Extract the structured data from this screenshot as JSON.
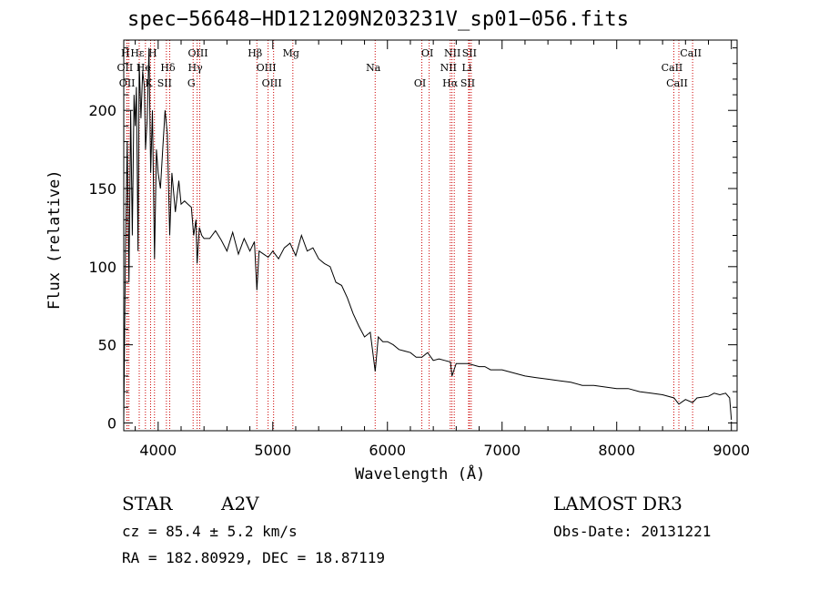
{
  "chart_data": {
    "type": "line",
    "title": "spec−56648−HD121209N203231V_sp01−056.fits",
    "xlabel": "Wavelength (Å)",
    "ylabel": "Flux (relative)",
    "xlim": [
      3700,
      9050
    ],
    "ylim": [
      -5,
      245
    ],
    "xticks": [
      4000,
      5000,
      6000,
      7000,
      8000,
      9000
    ],
    "yticks": [
      0,
      50,
      100,
      150,
      200
    ],
    "series": [
      {
        "name": "Flux",
        "x": [
          3700,
          3715,
          3730,
          3745,
          3760,
          3775,
          3790,
          3800,
          3810,
          3825,
          3835,
          3850,
          3865,
          3880,
          3890,
          3905,
          3920,
          3935,
          3950,
          3968,
          3985,
          4000,
          4020,
          4040,
          4060,
          4080,
          4101,
          4120,
          4150,
          4180,
          4200,
          4230,
          4260,
          4290,
          4310,
          4330,
          4340,
          4360,
          4380,
          4400,
          4450,
          4500,
          4550,
          4600,
          4650,
          4700,
          4750,
          4800,
          4840,
          4861,
          4880,
          4920,
          4960,
          5000,
          5050,
          5100,
          5150,
          5200,
          5250,
          5300,
          5350,
          5400,
          5450,
          5500,
          5550,
          5600,
          5650,
          5700,
          5750,
          5800,
          5850,
          5893,
          5920,
          5960,
          6000,
          6050,
          6100,
          6150,
          6200,
          6250,
          6300,
          6350,
          6400,
          6450,
          6500,
          6550,
          6563,
          6600,
          6650,
          6700,
          6750,
          6800,
          6850,
          6900,
          6950,
          7000,
          7100,
          7200,
          7300,
          7400,
          7500,
          7600,
          7700,
          7800,
          7900,
          8000,
          8100,
          8200,
          8300,
          8400,
          8500,
          8542,
          8600,
          8662,
          8700,
          8800,
          8850,
          8900,
          8950,
          8985,
          9000
        ],
        "y": [
          3,
          110,
          180,
          90,
          200,
          120,
          210,
          190,
          215,
          110,
          230,
          195,
          225,
          215,
          175,
          195,
          240,
          160,
          200,
          105,
          175,
          160,
          150,
          175,
          200,
          185,
          120,
          160,
          135,
          155,
          140,
          142,
          140,
          138,
          120,
          130,
          102,
          125,
          120,
          118,
          118,
          123,
          117,
          110,
          122,
          108,
          118,
          110,
          116,
          85,
          110,
          108,
          106,
          110,
          105,
          112,
          115,
          107,
          120,
          110,
          112,
          105,
          102,
          100,
          90,
          88,
          80,
          70,
          62,
          55,
          58,
          33,
          55,
          52,
          52,
          50,
          47,
          46,
          45,
          42,
          42,
          45,
          40,
          41,
          40,
          39,
          30,
          38,
          38,
          38,
          37,
          36,
          36,
          34,
          34,
          34,
          32,
          30,
          29,
          28,
          27,
          26,
          24,
          24,
          23,
          22,
          22,
          20,
          19,
          18,
          16,
          12,
          15,
          13,
          16,
          17,
          19,
          18,
          19,
          16,
          2
        ]
      }
    ],
    "lines": [
      {
        "name": "HK-H",
        "label": "H",
        "x": 3730
      },
      {
        "name": "OII-3727",
        "label": "OII",
        "x": 3727
      },
      {
        "name": "OII-3729",
        "label": "OII",
        "x": 3745
      },
      {
        "name": "H-eta",
        "label": "Hε",
        "x": 3835
      },
      {
        "name": "H-epsilon",
        "label": "He",
        "x": 3889
      },
      {
        "name": "CaII-K",
        "label": "K",
        "x": 3934
      },
      {
        "name": "CaII-H",
        "label": "H",
        "x": 3968
      },
      {
        "name": "H-delta",
        "label": "Hδ",
        "x": 4101
      },
      {
        "name": "SII-4072",
        "label": "SII",
        "x": 4072
      },
      {
        "name": "OIII-4363",
        "label": "OIII",
        "x": 4363
      },
      {
        "name": "H-gamma",
        "label": "Hγ",
        "x": 4340
      },
      {
        "name": "G-band",
        "label": "G",
        "x": 4305
      },
      {
        "name": "H-beta",
        "label": "Hβ",
        "x": 4861
      },
      {
        "name": "OIII-4959",
        "label": "OIII",
        "x": 4959
      },
      {
        "name": "OIII-5007",
        "label": "OIII",
        "x": 5007
      },
      {
        "name": "Mg",
        "label": "Mg",
        "x": 5175
      },
      {
        "name": "Na",
        "label": "Na",
        "x": 5893
      },
      {
        "name": "OI-6300",
        "label": "OI",
        "x": 6300
      },
      {
        "name": "OI-6364",
        "label": "OI",
        "x": 6364
      },
      {
        "name": "NII-6548",
        "label": "NII",
        "x": 6548
      },
      {
        "name": "H-alpha",
        "label": "Hα",
        "x": 6563
      },
      {
        "name": "NII-6583",
        "label": "NII",
        "x": 6583
      },
      {
        "name": "Li",
        "label": "Li",
        "x": 6708
      },
      {
        "name": "SII-6716",
        "label": "SII",
        "x": 6716
      },
      {
        "name": "SII-6731",
        "label": "SII",
        "x": 6731
      },
      {
        "name": "CaII-8498",
        "label": "CaII",
        "x": 8498
      },
      {
        "name": "CaII-8542",
        "label": "CaII",
        "x": 8542
      },
      {
        "name": "CaII-8662",
        "label": "CaII",
        "x": 8662
      }
    ],
    "line_color": "#cc0000"
  },
  "info": {
    "object_class": "STAR",
    "subclass": "A2V",
    "redshift": "cz = 85.4 ± 5.2 km/s",
    "survey": "LAMOST DR3",
    "obs_date": "Obs-Date: 20131221",
    "radec": "RA = 182.80929, DEC =  18.87119"
  }
}
